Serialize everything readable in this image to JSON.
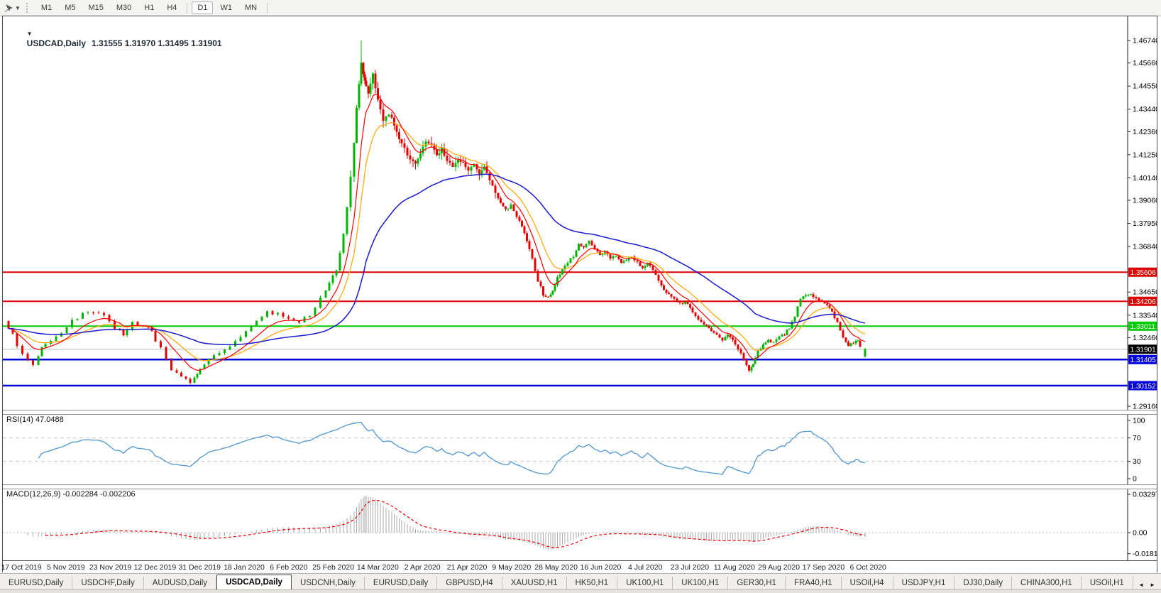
{
  "toolbar": {
    "tool_icon": "chart-pointer-icon",
    "dropdown_icon": "caret-down-icon",
    "timeframes": [
      "M1",
      "M5",
      "M15",
      "M30",
      "H1",
      "H4",
      "D1",
      "W1",
      "MN"
    ],
    "active_timeframe": "D1",
    "group_separator_after": "H4"
  },
  "chart": {
    "symbol": "USDCAD,Daily",
    "ohlc_text": "1.31555 1.31970 1.31495 1.31901",
    "price_ticks": [
      "1.46740",
      "1.45660",
      "1.44550",
      "1.43440",
      "1.42360",
      "1.41250",
      "1.40140",
      "1.39060",
      "1.37950",
      "1.36840",
      "1.34650",
      "1.33540",
      "1.32460",
      "1.29160"
    ],
    "levels": [
      {
        "price": "1.35606",
        "color": "#dd0000",
        "width": 2
      },
      {
        "price": "1.34206",
        "color": "#dd0000",
        "width": 2
      },
      {
        "price": "1.33011",
        "color": "#00cc00",
        "width": 2
      },
      {
        "price": "1.31405",
        "color": "#0000dd",
        "width": 2.5
      },
      {
        "price": "1.30152",
        "color": "#0000dd",
        "width": 2.5
      }
    ],
    "current_price": {
      "value": "1.31901",
      "badge_color": "#000000"
    },
    "dates": [
      "17 Oct 2019",
      "5 Nov 2019",
      "23 Nov 2019",
      "12 Dec 2019",
      "31 Dec 2019",
      "18 Jan 2020",
      "6 Feb 2020",
      "25 Feb 2020",
      "14 Mar 2020",
      "2 Apr 2020",
      "21 Apr 2020",
      "9 May 2020",
      "28 May 2020",
      "16 Jun 2020",
      "4 Jul 2020",
      "23 Jul 2020",
      "11 Aug 2020",
      "29 Aug 2020",
      "17 Sep 2020",
      "6 Oct 2020"
    ]
  },
  "rsi": {
    "label": "RSI(14) 47.0488",
    "scale": [
      "100",
      "70",
      "30",
      "0"
    ],
    "upper_level": 70,
    "lower_level": 30,
    "line_color": "#4f96d2"
  },
  "macd": {
    "label": "MACD(12,26,9) -0.002284 -0.002206",
    "scale": [
      "0.032972",
      "0.00",
      "-0.01815"
    ],
    "histogram_color": "#a8a8a8",
    "signal_color": "#ee0000"
  },
  "tabs": {
    "items": [
      "EURUSD,Daily",
      "USDCHF,Daily",
      "AUDUSD,Daily",
      "USDCAD,Daily",
      "USDCNH,Daily",
      "EURUSD,Daily",
      "GBPUSD,H4",
      "XAUUSD,H1",
      "HK50,H1",
      "UK100,H1",
      "UK100,H1",
      "GER30,H1",
      "FRA40,H1",
      "USOil,H4",
      "USDJPY,H1",
      "DJ30,Daily",
      "CHINA300,H1",
      "USOil,H1"
    ],
    "active_index": 3,
    "nav_left": "◄",
    "nav_right": "►"
  },
  "chart_data": {
    "type": "candlestick",
    "symbol": "USDCAD",
    "timeframe": "Daily",
    "title": "USDCAD,Daily",
    "ylim": [
      1.2916,
      1.4674
    ],
    "high": 1.4674,
    "last_candle": {
      "open": 1.31555,
      "high": 1.3197,
      "low": 1.31495,
      "close": 1.31901
    },
    "up_color": "#00b400",
    "down_color": "#e60000",
    "ma_fast_color": "#ff0000",
    "ma_mid_color": "#ffa500",
    "ma_slow_color": "#1a1acc",
    "levels": [
      1.35606,
      1.34206,
      1.33011,
      1.31405,
      1.30152
    ],
    "indicators": [
      {
        "name": "RSI",
        "period": 14,
        "value": 47.0488
      },
      {
        "name": "MACD",
        "params": [
          12,
          26,
          9
        ],
        "values": [
          -0.002284,
          -0.002206
        ]
      }
    ],
    "path": [
      [
        8,
        1.3326
      ],
      [
        20,
        1.3264
      ],
      [
        35,
        1.3162
      ],
      [
        50,
        1.3121
      ],
      [
        60,
        1.3196
      ],
      [
        75,
        1.3237
      ],
      [
        90,
        1.3271
      ],
      [
        105,
        1.3326
      ],
      [
        120,
        1.336
      ],
      [
        135,
        1.3367
      ],
      [
        150,
        1.335
      ],
      [
        165,
        1.3292
      ],
      [
        175,
        1.3264
      ],
      [
        190,
        1.3316
      ],
      [
        205,
        1.3305
      ],
      [
        215,
        1.3271
      ],
      [
        230,
        1.3196
      ],
      [
        245,
        1.3094
      ],
      [
        258,
        1.3053
      ],
      [
        270,
        1.3032
      ],
      [
        278,
        1.3077
      ],
      [
        290,
        1.3121
      ],
      [
        305,
        1.3162
      ],
      [
        320,
        1.3189
      ],
      [
        335,
        1.323
      ],
      [
        350,
        1.3281
      ],
      [
        365,
        1.3333
      ],
      [
        380,
        1.3367
      ],
      [
        395,
        1.336
      ],
      [
        410,
        1.334
      ],
      [
        425,
        1.3326
      ],
      [
        440,
        1.335
      ],
      [
        455,
        1.3435
      ],
      [
        465,
        1.3503
      ],
      [
        475,
        1.3572
      ],
      [
        485,
        1.3742
      ],
      [
        495,
        1.4015
      ],
      [
        502,
        1.4357
      ],
      [
        508,
        1.4561
      ],
      [
        512,
        1.4476
      ],
      [
        518,
        1.4425
      ],
      [
        525,
        1.451
      ],
      [
        532,
        1.4391
      ],
      [
        540,
        1.4288
      ],
      [
        548,
        1.4322
      ],
      [
        555,
        1.4271
      ],
      [
        562,
        1.4203
      ],
      [
        570,
        1.4152
      ],
      [
        578,
        1.4101
      ],
      [
        585,
        1.4084
      ],
      [
        592,
        1.4135
      ],
      [
        600,
        1.4186
      ],
      [
        608,
        1.4169
      ],
      [
        615,
        1.4118
      ],
      [
        622,
        1.4152
      ],
      [
        630,
        1.4101
      ],
      [
        638,
        1.4067
      ],
      [
        645,
        1.4101
      ],
      [
        652,
        1.4084
      ],
      [
        660,
        1.4049
      ],
      [
        668,
        1.4084
      ],
      [
        675,
        1.4032
      ],
      [
        682,
        1.4067
      ],
      [
        690,
        1.3998
      ],
      [
        698,
        1.3947
      ],
      [
        705,
        1.3896
      ],
      [
        712,
        1.3862
      ],
      [
        720,
        1.3879
      ],
      [
        728,
        1.3828
      ],
      [
        735,
        1.3776
      ],
      [
        742,
        1.3708
      ],
      [
        750,
        1.3623
      ],
      [
        758,
        1.352
      ],
      [
        765,
        1.3452
      ],
      [
        772,
        1.3435
      ],
      [
        778,
        1.3476
      ],
      [
        785,
        1.3537
      ],
      [
        792,
        1.3572
      ],
      [
        800,
        1.3606
      ],
      [
        808,
        1.364
      ],
      [
        815,
        1.3691
      ],
      [
        822,
        1.3674
      ],
      [
        830,
        1.3708
      ],
      [
        838,
        1.3667
      ],
      [
        845,
        1.364
      ],
      [
        852,
        1.3657
      ],
      [
        860,
        1.3623
      ],
      [
        868,
        1.364
      ],
      [
        875,
        1.3606
      ],
      [
        882,
        1.3623
      ],
      [
        890,
        1.3633
      ],
      [
        898,
        1.3606
      ],
      [
        905,
        1.3578
      ],
      [
        912,
        1.3599
      ],
      [
        920,
        1.3572
      ],
      [
        928,
        1.352
      ],
      [
        935,
        1.3476
      ],
      [
        942,
        1.3452
      ],
      [
        950,
        1.3435
      ],
      [
        958,
        1.3408
      ],
      [
        965,
        1.3418
      ],
      [
        972,
        1.3384
      ],
      [
        980,
        1.335
      ],
      [
        988,
        1.3326
      ],
      [
        995,
        1.3299
      ],
      [
        1002,
        1.3281
      ],
      [
        1010,
        1.3258
      ],
      [
        1018,
        1.3237
      ],
      [
        1025,
        1.3264
      ],
      [
        1032,
        1.3237
      ],
      [
        1040,
        1.3196
      ],
      [
        1048,
        1.3145
      ],
      [
        1055,
        1.3094
      ],
      [
        1060,
        1.3121
      ],
      [
        1068,
        1.3179
      ],
      [
        1075,
        1.3213
      ],
      [
        1082,
        1.3237
      ],
      [
        1090,
        1.3223
      ],
      [
        1098,
        1.3247
      ],
      [
        1105,
        1.3264
      ],
      [
        1112,
        1.3292
      ],
      [
        1120,
        1.335
      ],
      [
        1128,
        1.3435
      ],
      [
        1135,
        1.345
      ],
      [
        1142,
        1.3455
      ],
      [
        1150,
        1.343
      ],
      [
        1158,
        1.3418
      ],
      [
        1165,
        1.3401
      ],
      [
        1172,
        1.3367
      ],
      [
        1180,
        1.3316
      ],
      [
        1188,
        1.3247
      ],
      [
        1195,
        1.3203
      ],
      [
        1202,
        1.322
      ],
      [
        1208,
        1.3228
      ],
      [
        1215,
        1.319
      ]
    ]
  }
}
